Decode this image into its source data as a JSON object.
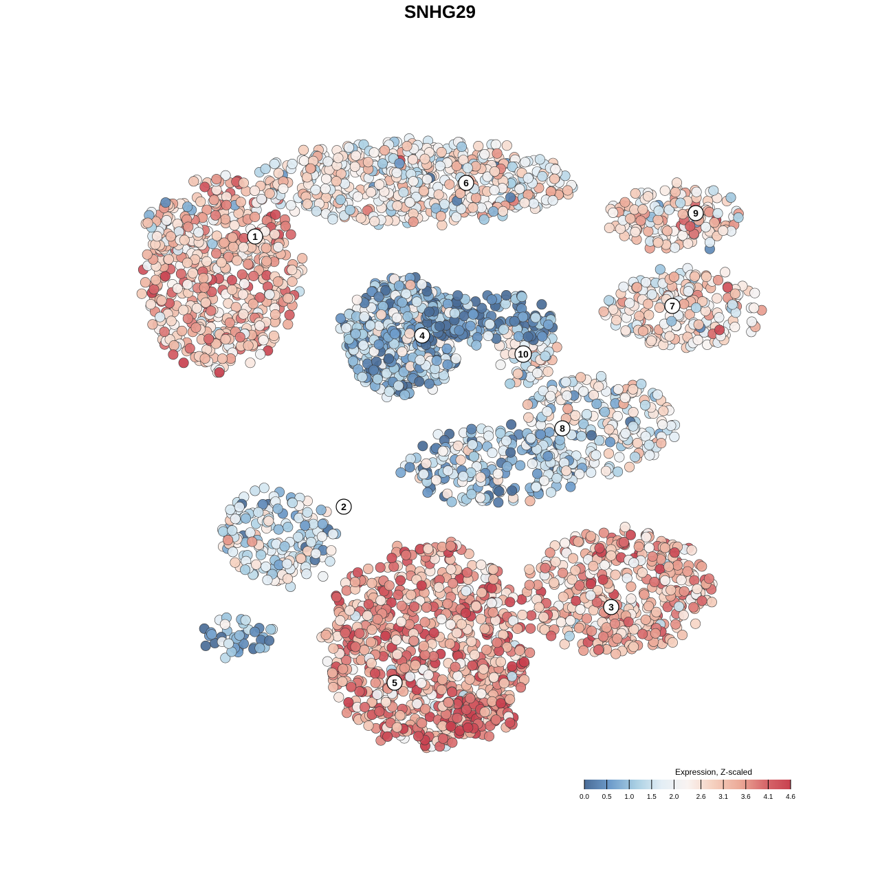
{
  "chart_data": {
    "type": "scatter",
    "title": "SNHG29",
    "xlabel": "",
    "ylabel": "",
    "colorbar": {
      "title": "Expression, Z-scaled",
      "min": 0.0,
      "max": 4.6,
      "ticks": [
        "0.0",
        "0.5",
        "1.0",
        "1.5",
        "2.0",
        "2.6",
        "3.1",
        "3.6",
        "4.1",
        "4.6"
      ],
      "colors": [
        "#4a6c97",
        "#6e9ccb",
        "#a9cfe3",
        "#e3eef5",
        "#f9f3f1",
        "#f5d0bf",
        "#ecab99",
        "#d7696c",
        "#c8414f"
      ]
    },
    "clusters": [
      {
        "label": "1",
        "expression_mean": 3.0
      },
      {
        "label": "2",
        "expression_mean": 1.7
      },
      {
        "label": "3",
        "expression_mean": 3.2
      },
      {
        "label": "4",
        "expression_mean": 1.0
      },
      {
        "label": "5",
        "expression_mean": 3.4
      },
      {
        "label": "6",
        "expression_mean": 2.3
      },
      {
        "label": "7",
        "expression_mean": 2.4
      },
      {
        "label": "8",
        "expression_mean": 2.0
      },
      {
        "label": "9",
        "expression_mean": 2.5
      },
      {
        "label": "10",
        "expression_mean": 2.1
      }
    ],
    "legend_position": "bottom-right",
    "grid": false
  }
}
